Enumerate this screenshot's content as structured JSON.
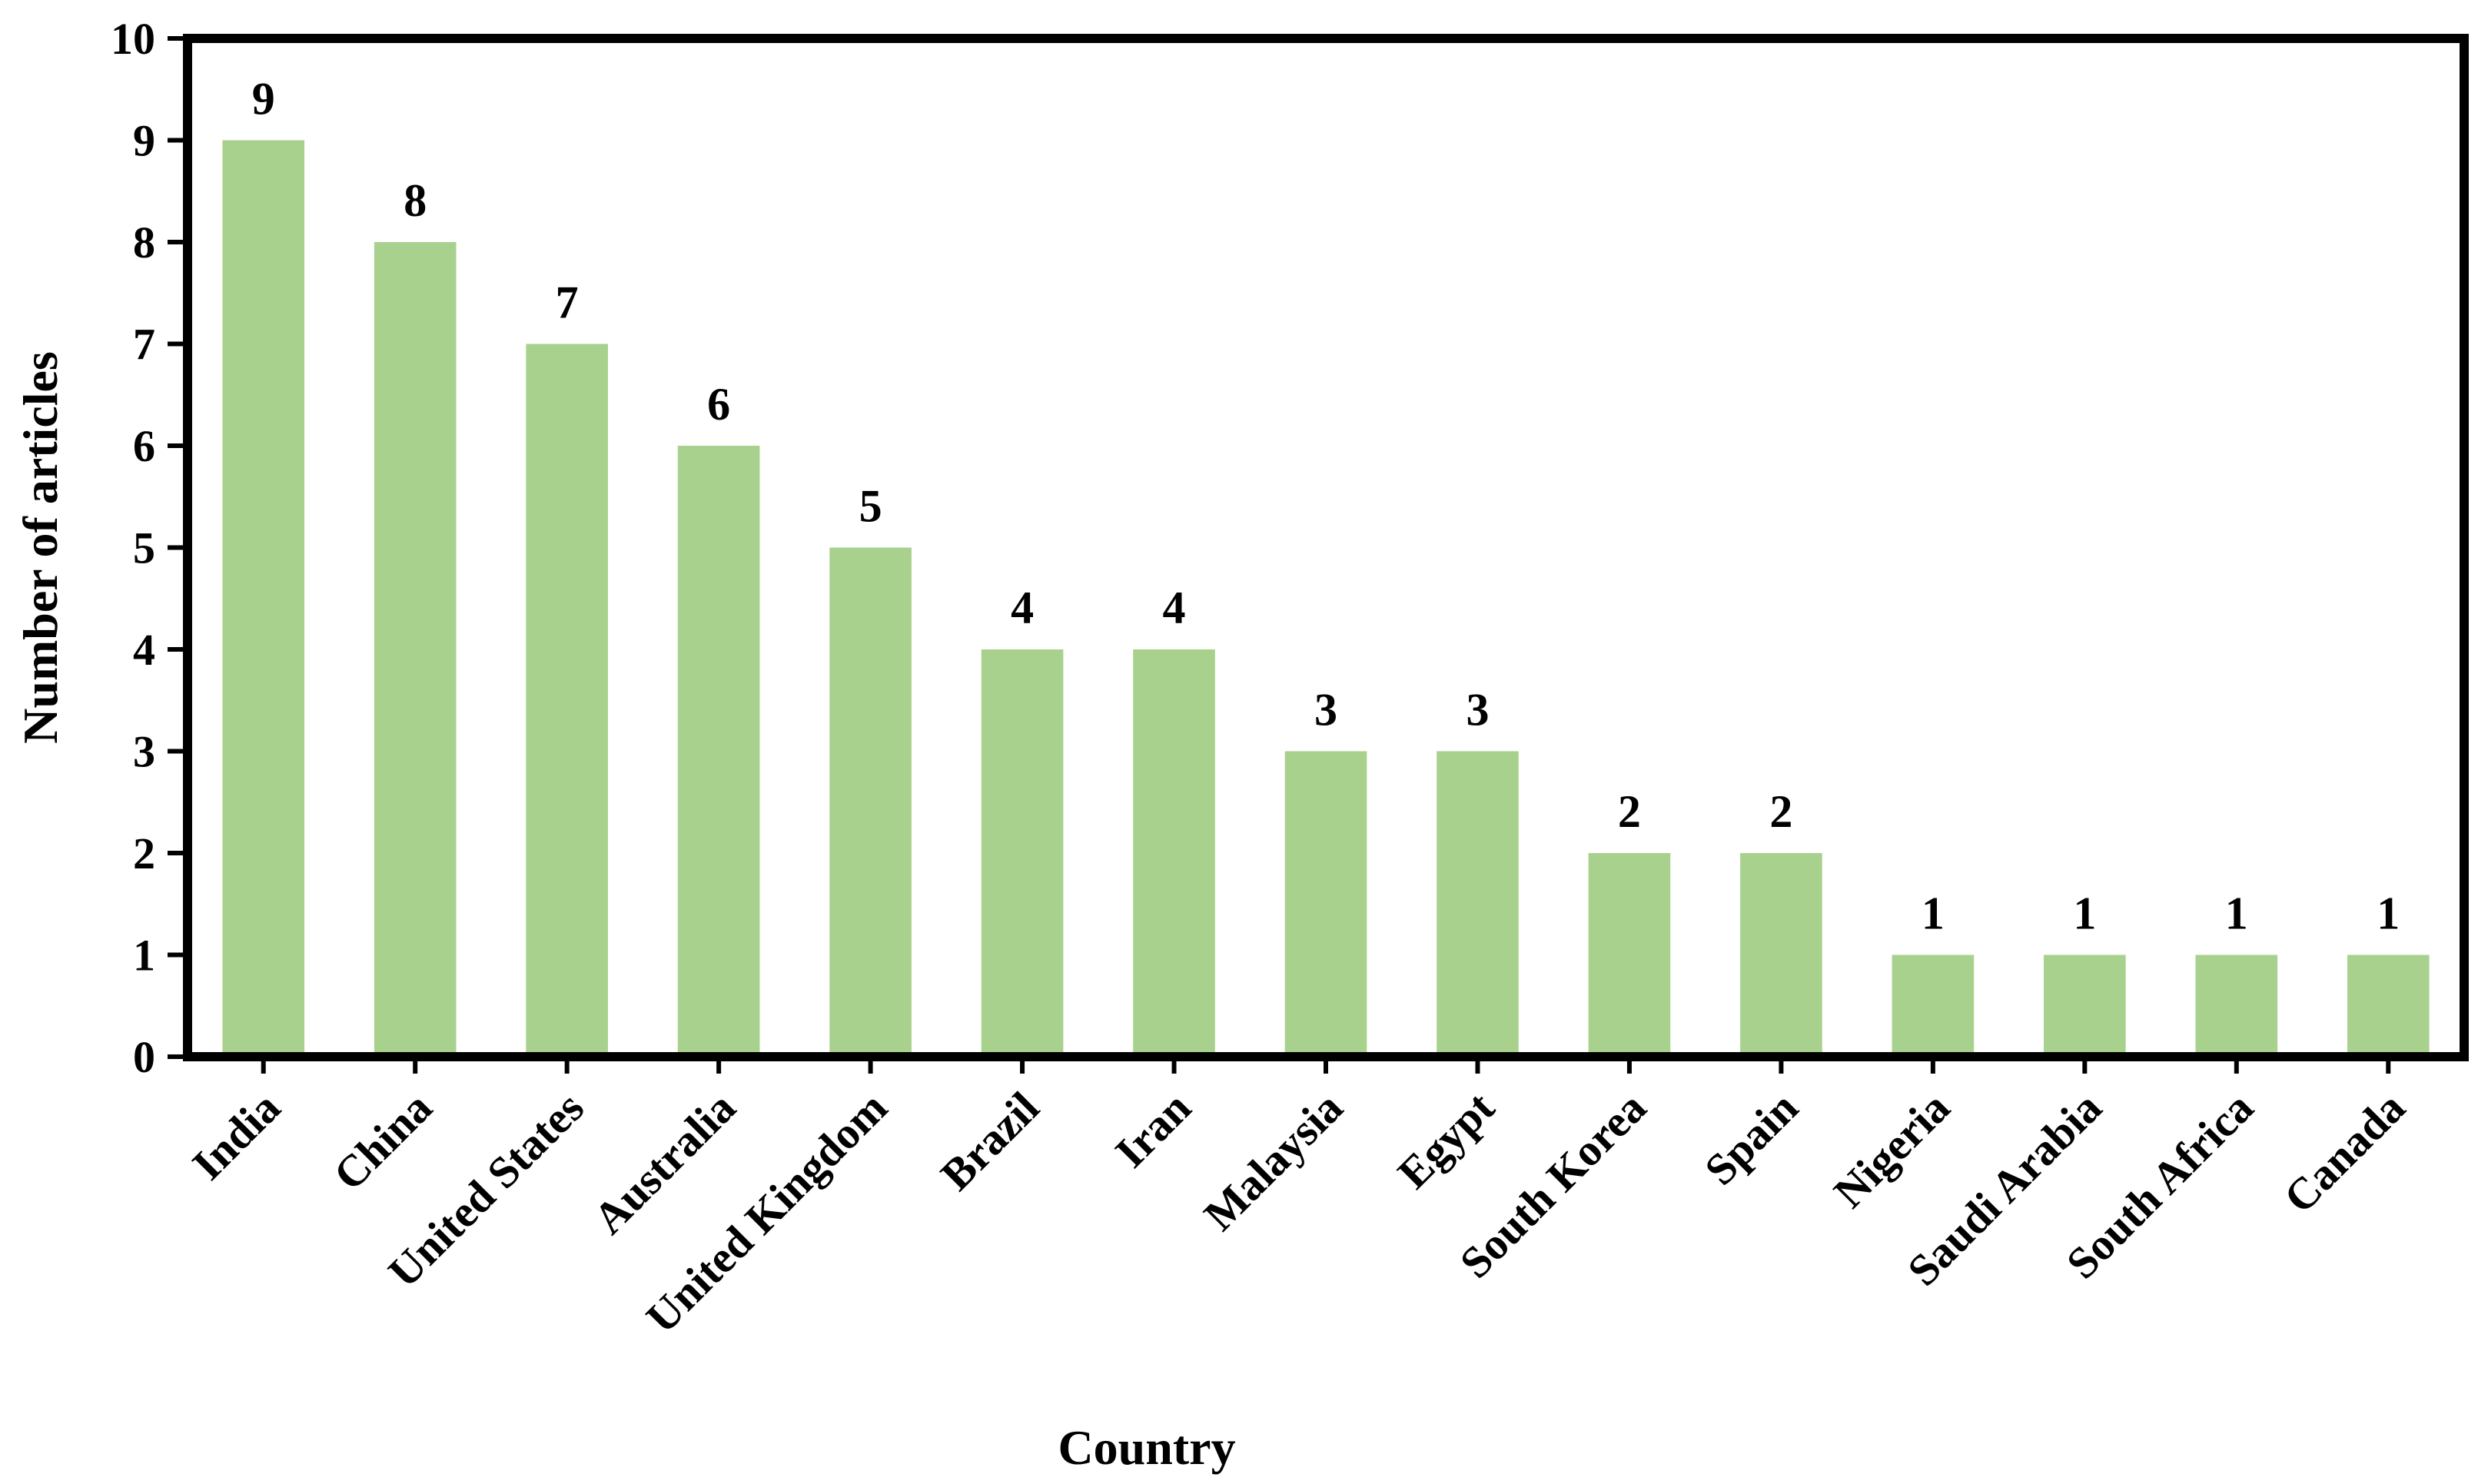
{
  "chart_data": {
    "type": "bar",
    "title": "",
    "xlabel": "Country",
    "ylabel": "Number of articles",
    "ylim": [
      0,
      10
    ],
    "yticks": [
      0,
      1,
      2,
      3,
      4,
      5,
      6,
      7,
      8,
      9,
      10
    ],
    "grid": false,
    "legend": "none",
    "bar_color": "#a9d18e",
    "categories": [
      "India",
      "China",
      "United States",
      "Australia",
      "United Kingdom",
      "Brazil",
      "Iran",
      "Malaysia",
      "Egypt",
      "South Korea",
      "Spain",
      "Nigeria",
      "Saudi Arabia",
      "South Africa",
      "Canada"
    ],
    "values": [
      9,
      8,
      7,
      6,
      5,
      4,
      4,
      3,
      3,
      2,
      2,
      1,
      1,
      1,
      1
    ],
    "data_labels": true
  }
}
